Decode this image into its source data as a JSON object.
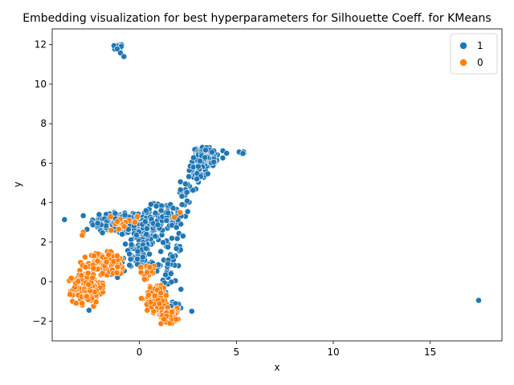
{
  "chart_data": {
    "type": "scatter",
    "title": "Embedding visualization for best hyperparameters for Silhouette Coeff. for KMeans",
    "xlabel": "x",
    "ylabel": "y",
    "xlim": [
      -4.5,
      18.7
    ],
    "ylim": [
      -3.0,
      12.8
    ],
    "x_ticks": [
      0,
      5,
      10,
      15
    ],
    "x_tick_labels": [
      "0",
      "5",
      "10",
      "15"
    ],
    "y_ticks": [
      -2,
      0,
      2,
      4,
      6,
      8,
      10,
      12
    ],
    "y_tick_labels": [
      "−2",
      "0",
      "2",
      "4",
      "6",
      "8",
      "10",
      "12"
    ],
    "grid": false,
    "legend_placement": "top-right",
    "series": [
      {
        "name": "1",
        "color": "#1f77b4",
        "clusters": [
          {
            "cx": -1.2,
            "cy": 3.0,
            "sx": 1.1,
            "sy": 0.5,
            "n": 130
          },
          {
            "cx": 0.3,
            "cy": 2.8,
            "sx": 0.8,
            "sy": 0.8,
            "n": 160
          },
          {
            "cx": 1.5,
            "cy": 3.3,
            "sx": 0.7,
            "sy": 0.5,
            "n": 60
          },
          {
            "cx": -0.1,
            "cy": 1.3,
            "sx": 0.7,
            "sy": 0.7,
            "n": 60
          },
          {
            "cx": 1.6,
            "cy": 1.0,
            "sx": 0.5,
            "sy": 1.1,
            "n": 50
          },
          {
            "cx": 3.4,
            "cy": 6.3,
            "sx": 0.5,
            "sy": 0.4,
            "n": 160
          },
          {
            "cx": 3.0,
            "cy": 5.5,
            "sx": 0.3,
            "sy": 0.35,
            "n": 30
          },
          {
            "cx": 2.4,
            "cy": 4.6,
            "sx": 0.25,
            "sy": 0.5,
            "n": 18
          },
          {
            "cx": -1.1,
            "cy": 11.85,
            "sx": 0.15,
            "sy": 0.15,
            "n": 28
          },
          {
            "cx": 1.8,
            "cy": -1.3,
            "sx": 0.4,
            "sy": 0.3,
            "n": 15
          },
          {
            "cx": -1.3,
            "cy": 0.6,
            "sx": 0.4,
            "sy": 0.4,
            "n": 14
          },
          {
            "cx": 5.3,
            "cy": 6.55,
            "sx": 0.2,
            "sy": 0.06,
            "n": 6
          }
        ],
        "points": [
          {
            "x": 17.5,
            "y": -0.95
          },
          {
            "x": -0.8,
            "y": 11.4
          },
          {
            "x": -3.3,
            "y": -0.1
          },
          {
            "x": -2.6,
            "y": -1.45
          },
          {
            "x": 2.7,
            "y": -1.5
          },
          {
            "x": -2.7,
            "y": 2.65
          },
          {
            "x": 2.2,
            "y": 3.9
          },
          {
            "x": 4.5,
            "y": 6.5
          }
        ]
      },
      {
        "name": "0",
        "color": "#ff7f0e",
        "clusters": [
          {
            "cx": -2.7,
            "cy": -0.3,
            "sx": 0.6,
            "sy": 0.6,
            "n": 220
          },
          {
            "cx": -2.1,
            "cy": 0.9,
            "sx": 0.5,
            "sy": 0.5,
            "n": 60
          },
          {
            "cx": -1.3,
            "cy": 0.9,
            "sx": 0.5,
            "sy": 0.5,
            "n": 60
          },
          {
            "cx": 0.9,
            "cy": -0.8,
            "sx": 0.5,
            "sy": 0.6,
            "n": 80
          },
          {
            "cx": 1.6,
            "cy": -1.7,
            "sx": 0.4,
            "sy": 0.3,
            "n": 70
          },
          {
            "cx": 0.4,
            "cy": 0.5,
            "sx": 0.3,
            "sy": 0.3,
            "n": 18
          },
          {
            "cx": -1.0,
            "cy": 2.9,
            "sx": 0.4,
            "sy": 0.4,
            "n": 14
          }
        ],
        "points": [
          {
            "x": -2.9,
            "y": 2.5
          },
          {
            "x": -2.95,
            "y": 2.35
          },
          {
            "x": 1.8,
            "y": 3.25
          },
          {
            "x": 2.1,
            "y": 3.5
          },
          {
            "x": -0.1,
            "y": 3.3
          },
          {
            "x": 0.4,
            "y": -1.45
          }
        ]
      }
    ]
  }
}
